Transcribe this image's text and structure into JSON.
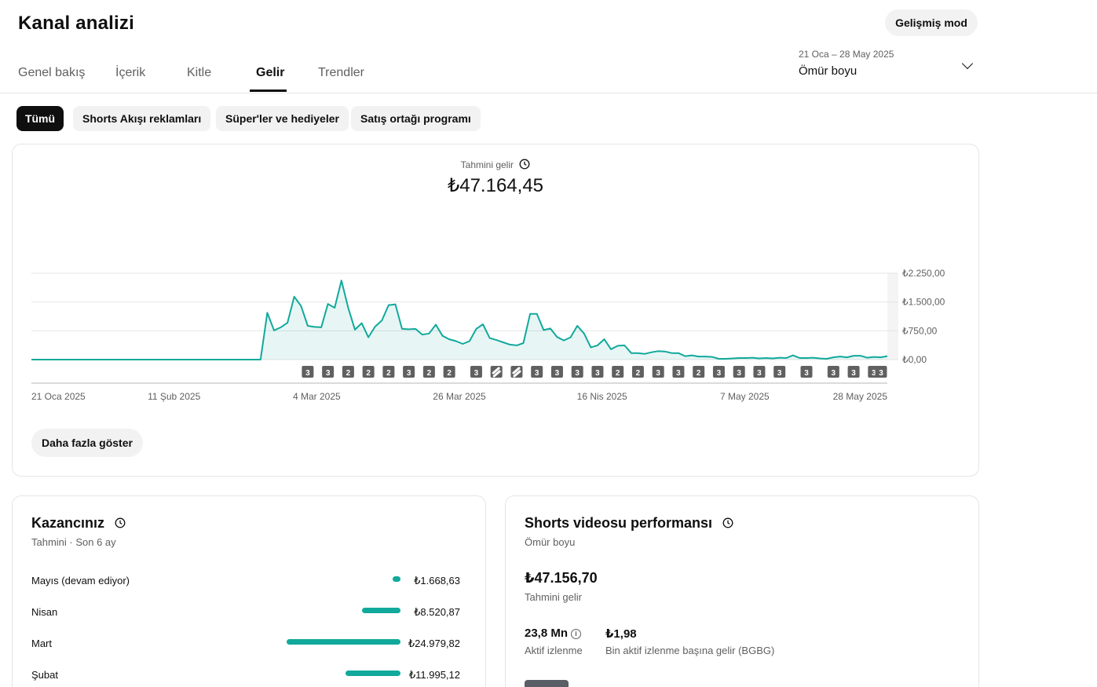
{
  "header": {
    "title": "Kanal analizi",
    "advanced_mode": "Gelişmiş mod"
  },
  "tabs": [
    {
      "label": "Genel bakış",
      "active": false
    },
    {
      "label": "İçerik",
      "active": false
    },
    {
      "label": "Kitle",
      "active": false
    },
    {
      "label": "Gelir",
      "active": true
    },
    {
      "label": "Trendler",
      "active": false
    }
  ],
  "date_picker": {
    "range": "21 Oca – 28 May 2025",
    "label": "Ömür boyu"
  },
  "filters": [
    {
      "label": "Tümü",
      "active": true
    },
    {
      "label": "Shorts Akışı reklamları",
      "active": false
    },
    {
      "label": "Süper'ler ve hediyeler",
      "active": false
    },
    {
      "label": "Satış ortağı programı",
      "active": false
    }
  ],
  "revenue_card": {
    "title": "Tahmini gelir",
    "value": "₺47.164,45",
    "more_button": "Daha fazla göster"
  },
  "chart_data": {
    "type": "area",
    "title": "Tahmini gelir",
    "ylim": [
      0,
      2250
    ],
    "y_ticks": [
      "₺2.250,00",
      "₺1.500,00",
      "₺750,00",
      "₺0,00"
    ],
    "x_tick_labels": [
      "21 Oca 2025",
      "11 Şub 2025",
      "4 Mar 2025",
      "26 Mar 2025",
      "16 Nis 2025",
      "7 May 2025",
      "28 May 2025"
    ],
    "x_start": "2025-01-21",
    "x_end": "2025-05-28",
    "grid": true,
    "color": "#11a99b",
    "series": [
      {
        "points": [
          [
            "2025-01-21",
            0
          ],
          [
            "2025-02-24",
            0
          ],
          [
            "2025-02-25",
            1220
          ],
          [
            "2025-02-26",
            760
          ],
          [
            "2025-02-27",
            840
          ],
          [
            "2025-02-28",
            960
          ],
          [
            "2025-03-01",
            1640
          ],
          [
            "2025-03-02",
            1400
          ],
          [
            "2025-03-03",
            880
          ],
          [
            "2025-03-04",
            850
          ],
          [
            "2025-03-05",
            840
          ],
          [
            "2025-03-06",
            1450
          ],
          [
            "2025-03-07",
            1350
          ],
          [
            "2025-03-08",
            2060
          ],
          [
            "2025-03-09",
            1350
          ],
          [
            "2025-03-10",
            780
          ],
          [
            "2025-03-11",
            950
          ],
          [
            "2025-03-12",
            580
          ],
          [
            "2025-03-13",
            860
          ],
          [
            "2025-03-14",
            1020
          ],
          [
            "2025-03-15",
            1420
          ],
          [
            "2025-03-16",
            1440
          ],
          [
            "2025-03-17",
            800
          ],
          [
            "2025-03-18",
            790
          ],
          [
            "2025-03-19",
            800
          ],
          [
            "2025-03-20",
            650
          ],
          [
            "2025-03-21",
            680
          ],
          [
            "2025-03-22",
            910
          ],
          [
            "2025-03-23",
            620
          ],
          [
            "2025-03-24",
            530
          ],
          [
            "2025-03-25",
            480
          ],
          [
            "2025-03-26",
            410
          ],
          [
            "2025-03-27",
            480
          ],
          [
            "2025-03-28",
            800
          ],
          [
            "2025-03-29",
            920
          ],
          [
            "2025-03-30",
            560
          ],
          [
            "2025-03-31",
            510
          ],
          [
            "2025-04-01",
            450
          ],
          [
            "2025-04-02",
            390
          ],
          [
            "2025-04-03",
            370
          ],
          [
            "2025-04-04",
            430
          ],
          [
            "2025-04-05",
            1190
          ],
          [
            "2025-04-06",
            1190
          ],
          [
            "2025-04-07",
            770
          ],
          [
            "2025-04-08",
            810
          ],
          [
            "2025-04-09",
            590
          ],
          [
            "2025-04-10",
            500
          ],
          [
            "2025-04-11",
            580
          ],
          [
            "2025-04-12",
            880
          ],
          [
            "2025-04-13",
            680
          ],
          [
            "2025-04-14",
            320
          ],
          [
            "2025-04-15",
            370
          ],
          [
            "2025-04-16",
            530
          ],
          [
            "2025-04-17",
            270
          ],
          [
            "2025-04-18",
            360
          ],
          [
            "2025-04-19",
            370
          ],
          [
            "2025-04-20",
            170
          ],
          [
            "2025-04-21",
            170
          ],
          [
            "2025-04-22",
            150
          ],
          [
            "2025-04-23",
            190
          ],
          [
            "2025-04-24",
            220
          ],
          [
            "2025-04-25",
            210
          ],
          [
            "2025-04-26",
            170
          ],
          [
            "2025-04-27",
            170
          ],
          [
            "2025-04-28",
            90
          ],
          [
            "2025-04-29",
            110
          ],
          [
            "2025-04-30",
            80
          ],
          [
            "2025-05-01",
            80
          ],
          [
            "2025-05-02",
            70
          ],
          [
            "2025-05-03",
            20
          ],
          [
            "2025-05-04",
            20
          ],
          [
            "2025-05-05",
            30
          ],
          [
            "2025-05-06",
            40
          ],
          [
            "2025-05-07",
            40
          ],
          [
            "2025-05-08",
            50
          ],
          [
            "2025-05-09",
            30
          ],
          [
            "2025-05-10",
            40
          ],
          [
            "2025-05-11",
            30
          ],
          [
            "2025-05-12",
            50
          ],
          [
            "2025-05-13",
            40
          ],
          [
            "2025-05-14",
            110
          ],
          [
            "2025-05-15",
            40
          ],
          [
            "2025-05-16",
            40
          ],
          [
            "2025-05-17",
            50
          ],
          [
            "2025-05-18",
            30
          ],
          [
            "2025-05-19",
            20
          ],
          [
            "2025-05-20",
            60
          ],
          [
            "2025-05-21",
            80
          ],
          [
            "2025-05-22",
            60
          ],
          [
            "2025-05-23",
            100
          ],
          [
            "2025-05-24",
            100
          ],
          [
            "2025-05-25",
            50
          ],
          [
            "2025-05-26",
            70
          ],
          [
            "2025-05-27",
            60
          ],
          [
            "2025-05-28",
            90
          ]
        ]
      }
    ],
    "upload_markers": [
      {
        "date": "2025-03-03",
        "label": "3"
      },
      {
        "date": "2025-03-06",
        "label": "3"
      },
      {
        "date": "2025-03-09",
        "label": "2"
      },
      {
        "date": "2025-03-12",
        "label": "2"
      },
      {
        "date": "2025-03-15",
        "label": "2"
      },
      {
        "date": "2025-03-18",
        "label": "3"
      },
      {
        "date": "2025-03-21",
        "label": "2"
      },
      {
        "date": "2025-03-24",
        "label": "2"
      },
      {
        "date": "2025-03-28",
        "label": "3"
      },
      {
        "date": "2025-03-31",
        "label": "shorts"
      },
      {
        "date": "2025-04-03",
        "label": "shorts"
      },
      {
        "date": "2025-04-06",
        "label": "3"
      },
      {
        "date": "2025-04-09",
        "label": "3"
      },
      {
        "date": "2025-04-12",
        "label": "3"
      },
      {
        "date": "2025-04-15",
        "label": "3"
      },
      {
        "date": "2025-04-18",
        "label": "2"
      },
      {
        "date": "2025-04-21",
        "label": "2"
      },
      {
        "date": "2025-04-24",
        "label": "3"
      },
      {
        "date": "2025-04-27",
        "label": "3"
      },
      {
        "date": "2025-04-30",
        "label": "2"
      },
      {
        "date": "2025-05-03",
        "label": "3"
      },
      {
        "date": "2025-05-06",
        "label": "3"
      },
      {
        "date": "2025-05-09",
        "label": "3"
      },
      {
        "date": "2025-05-12",
        "label": "3"
      },
      {
        "date": "2025-05-16",
        "label": "3"
      },
      {
        "date": "2025-05-20",
        "label": "3"
      },
      {
        "date": "2025-05-23",
        "label": "3"
      },
      {
        "date": "2025-05-26",
        "label": "3"
      },
      {
        "date": "2025-05-30",
        "label": "3"
      }
    ]
  },
  "earnings_card": {
    "title": "Kazancınız",
    "subtitle": "Tahmini · Son 6 ay",
    "rows": [
      {
        "month": "Mayıs (devam ediyor)",
        "amount": "₺1.668,63",
        "value": 1668.63
      },
      {
        "month": "Nisan",
        "amount": "₺8.520,87",
        "value": 8520.87
      },
      {
        "month": "Mart",
        "amount": "₺24.979,82",
        "value": 24979.82
      },
      {
        "month": "Şubat",
        "amount": "₺11.995,12",
        "value": 11995.12
      }
    ]
  },
  "shorts_card": {
    "title": "Shorts videosu performansı",
    "subtitle": "Ömür boyu",
    "revenue": "₺47.156,70",
    "revenue_label": "Tahmini gelir",
    "active_views": "23,8 Mn",
    "active_views_label": "Aktif izlenme",
    "rpm": "₺1,98",
    "rpm_label": "Bin aktif izlenme başına gelir (BGBG)"
  }
}
